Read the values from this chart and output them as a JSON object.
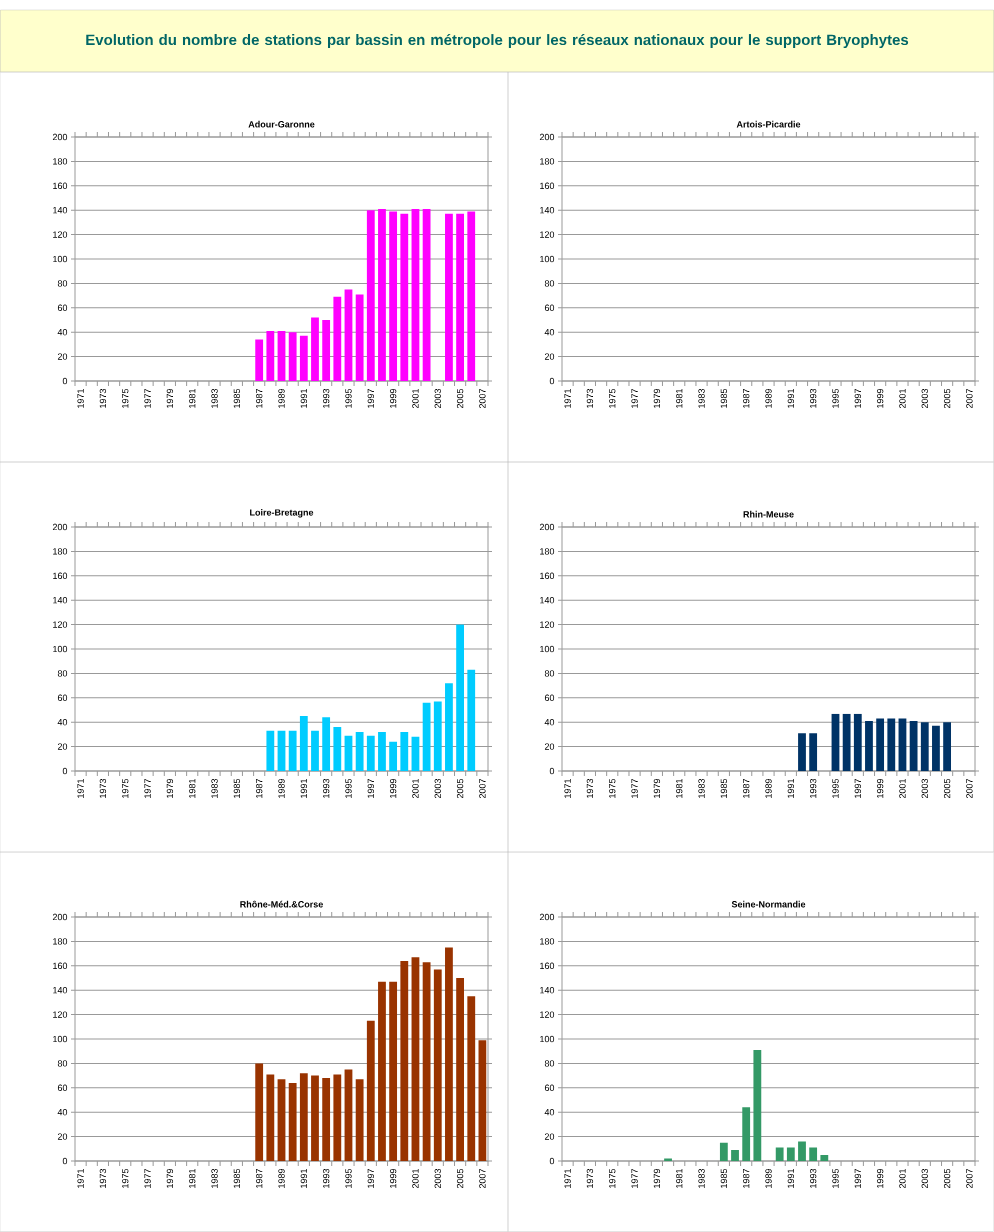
{
  "chart_data": [
    {
      "type": "other",
      "title": "Evolution du nombre de stations par bassin en métropole pour les réseaux nationaux pour le support Bryophytes"
    },
    {
      "type": "bar",
      "title": "Adour-Garonne",
      "categories": [
        "1971",
        null,
        "1973",
        null,
        "1975",
        null,
        "1977",
        null,
        "1979",
        null,
        "1981",
        null,
        "1983",
        null,
        "1985",
        null,
        "1987",
        null,
        "1989",
        null,
        "1991",
        null,
        "1993",
        null,
        "1995",
        null,
        "1997",
        null,
        "1999",
        null,
        "2001",
        null,
        "2003",
        null,
        "2005",
        null,
        "2007"
      ],
      "values": [
        null,
        null,
        null,
        null,
        null,
        null,
        null,
        null,
        null,
        null,
        null,
        null,
        null,
        null,
        null,
        null,
        34,
        41,
        41,
        40,
        37,
        52,
        50,
        69,
        75,
        71,
        140,
        141,
        139,
        137,
        141,
        141,
        null,
        137,
        137,
        139,
        null
      ],
      "color": "#ff00ff",
      "ylim": [
        0,
        200
      ],
      "yticks": [
        0,
        20,
        40,
        60,
        80,
        100,
        120,
        140,
        160,
        180,
        200
      ],
      "grid": "y"
    },
    {
      "type": "bar",
      "title": "Artois-Picardie",
      "categories": [
        "1971",
        null,
        "1973",
        null,
        "1975",
        null,
        "1977",
        null,
        "1979",
        null,
        "1981",
        null,
        "1983",
        null,
        "1985",
        null,
        "1987",
        null,
        "1989",
        null,
        "1991",
        null,
        "1993",
        null,
        "1995",
        null,
        "1997",
        null,
        "1999",
        null,
        "2001",
        null,
        "2003",
        null,
        "2005",
        null,
        "2007"
      ],
      "values": [
        null,
        null,
        null,
        null,
        null,
        null,
        null,
        null,
        null,
        null,
        null,
        null,
        null,
        null,
        null,
        null,
        null,
        null,
        null,
        null,
        null,
        null,
        null,
        null,
        null,
        null,
        null,
        null,
        null,
        null,
        null,
        null,
        null,
        null,
        null,
        null,
        null
      ],
      "color": "#003366",
      "ylim": [
        0,
        200
      ],
      "yticks": [
        0,
        20,
        40,
        60,
        80,
        100,
        120,
        140,
        160,
        180,
        200
      ],
      "grid": "y"
    },
    {
      "type": "bar",
      "title": "Loire-Bretagne",
      "categories": [
        "1971",
        null,
        "1973",
        null,
        "1975",
        null,
        "1977",
        null,
        "1979",
        null,
        "1981",
        null,
        "1983",
        null,
        "1985",
        null,
        "1987",
        null,
        "1989",
        null,
        "1991",
        null,
        "1993",
        null,
        "1995",
        null,
        "1997",
        null,
        "1999",
        null,
        "2001",
        null,
        "2003",
        null,
        "2005",
        null,
        "2007"
      ],
      "values": [
        null,
        null,
        null,
        null,
        null,
        null,
        null,
        null,
        null,
        null,
        null,
        null,
        null,
        null,
        null,
        null,
        null,
        33,
        33,
        33,
        45,
        33,
        44,
        36,
        29,
        32,
        29,
        32,
        24,
        32,
        28,
        56,
        57,
        72,
        120,
        83,
        null
      ],
      "color": "#00ccff",
      "ylim": [
        0,
        200
      ],
      "yticks": [
        0,
        20,
        40,
        60,
        80,
        100,
        120,
        140,
        160,
        180,
        200
      ],
      "grid": "y"
    },
    {
      "type": "bar",
      "title": "Rhin-Meuse",
      "categories": [
        "1971",
        null,
        "1973",
        null,
        "1975",
        null,
        "1977",
        null,
        "1979",
        null,
        "1981",
        null,
        "1983",
        null,
        "1985",
        null,
        "1987",
        null,
        "1989",
        null,
        "1991",
        null,
        "1993",
        null,
        "1995",
        null,
        "1997",
        null,
        "1999",
        null,
        "2001",
        null,
        "2003",
        null,
        "2005",
        null,
        "2007"
      ],
      "values": [
        null,
        null,
        null,
        null,
        null,
        null,
        null,
        null,
        null,
        null,
        null,
        null,
        null,
        null,
        null,
        null,
        null,
        null,
        null,
        null,
        null,
        31,
        31,
        null,
        47,
        47,
        47,
        41,
        43,
        43,
        43,
        41,
        40,
        37,
        40,
        null,
        null
      ],
      "color": "#003366",
      "ylim": [
        0,
        200
      ],
      "yticks": [
        0,
        20,
        40,
        60,
        80,
        100,
        120,
        140,
        160,
        180,
        200
      ],
      "grid": "y"
    },
    {
      "type": "bar",
      "title": "Rhône-Méd.&Corse",
      "categories": [
        "1971",
        null,
        "1973",
        null,
        "1975",
        null,
        "1977",
        null,
        "1979",
        null,
        "1981",
        null,
        "1983",
        null,
        "1985",
        null,
        "1987",
        null,
        "1989",
        null,
        "1991",
        null,
        "1993",
        null,
        "1995",
        null,
        "1997",
        null,
        "1999",
        null,
        "2001",
        null,
        "2003",
        null,
        "2005",
        null,
        "2007"
      ],
      "values": [
        null,
        null,
        null,
        null,
        null,
        null,
        null,
        null,
        null,
        null,
        null,
        null,
        null,
        null,
        null,
        null,
        80,
        71,
        67,
        64,
        72,
        70,
        68,
        71,
        75,
        67,
        115,
        147,
        147,
        164,
        167,
        163,
        157,
        175,
        150,
        135,
        99
      ],
      "color": "#993300",
      "ylim": [
        0,
        200
      ],
      "yticks": [
        0,
        20,
        40,
        60,
        80,
        100,
        120,
        140,
        160,
        180,
        200
      ],
      "grid": "y"
    },
    {
      "type": "bar",
      "title": "Seine-Normandie",
      "categories": [
        "1971",
        null,
        "1973",
        null,
        "1975",
        null,
        "1977",
        null,
        "1979",
        null,
        "1981",
        null,
        "1983",
        null,
        "1985",
        null,
        "1987",
        null,
        "1989",
        null,
        "1991",
        null,
        "1993",
        null,
        "1995",
        null,
        "1997",
        null,
        "1999",
        null,
        "2001",
        null,
        "2003",
        null,
        "2005",
        null,
        "2007"
      ],
      "values": [
        null,
        null,
        null,
        null,
        null,
        null,
        null,
        null,
        null,
        2,
        null,
        null,
        null,
        null,
        15,
        9,
        44,
        91,
        null,
        11,
        11,
        16,
        11,
        5,
        null,
        null,
        null,
        null,
        null,
        null,
        null,
        null,
        null,
        null,
        null,
        null,
        null
      ],
      "color": "#339966",
      "ylim": [
        0,
        200
      ],
      "yticks": [
        0,
        20,
        40,
        60,
        80,
        100,
        120,
        140,
        160,
        180,
        200
      ],
      "grid": "y"
    }
  ]
}
